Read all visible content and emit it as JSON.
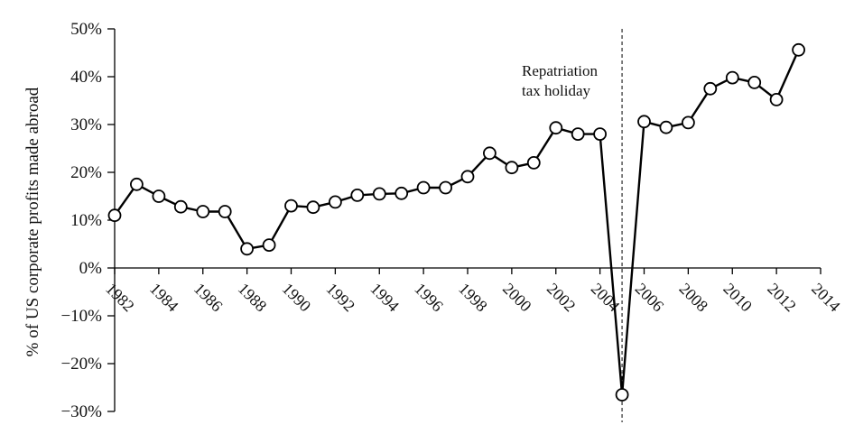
{
  "chart_data": {
    "type": "line",
    "title": "",
    "xlabel": "",
    "ylabel": "% of US corporate profits made abroad",
    "x_ticks": [
      "1982",
      "1984",
      "1986",
      "1988",
      "1990",
      "1992",
      "1994",
      "1996",
      "1998",
      "2000",
      "2002",
      "2004",
      "2006",
      "2008",
      "2010",
      "2012",
      "2014"
    ],
    "y_ticks": [
      "50%",
      "40%",
      "30%",
      "20%",
      "10%",
      "0%",
      "−10%",
      "−20%",
      "−30%"
    ],
    "xlim": [
      1982,
      2014
    ],
    "ylim": [
      -30,
      50
    ],
    "grid": false,
    "series": [
      {
        "x": [
          1982,
          1983,
          1984,
          1985,
          1986,
          1987,
          1988,
          1989,
          1990,
          1991,
          1992,
          1993,
          1994,
          1995,
          1996,
          1997,
          1998,
          1999,
          2000,
          2001,
          2002,
          2003,
          2004,
          2005,
          2006,
          2007,
          2008,
          2009,
          2010,
          2011,
          2012,
          2013
        ],
        "values": [
          11,
          17.5,
          15,
          12.8,
          11.8,
          11.8,
          4,
          4.8,
          13,
          12.7,
          13.8,
          15.2,
          15.5,
          15.6,
          16.8,
          16.8,
          19.1,
          24,
          21,
          22,
          29.3,
          28,
          28,
          -26.5,
          30.6,
          29.4,
          30.4,
          37.5,
          39.8,
          38.8,
          35.2,
          45.6
        ]
      }
    ],
    "annotations": [
      {
        "text_lines": [
          "Repatriation",
          "tax holiday"
        ],
        "x": 2005
      }
    ]
  }
}
